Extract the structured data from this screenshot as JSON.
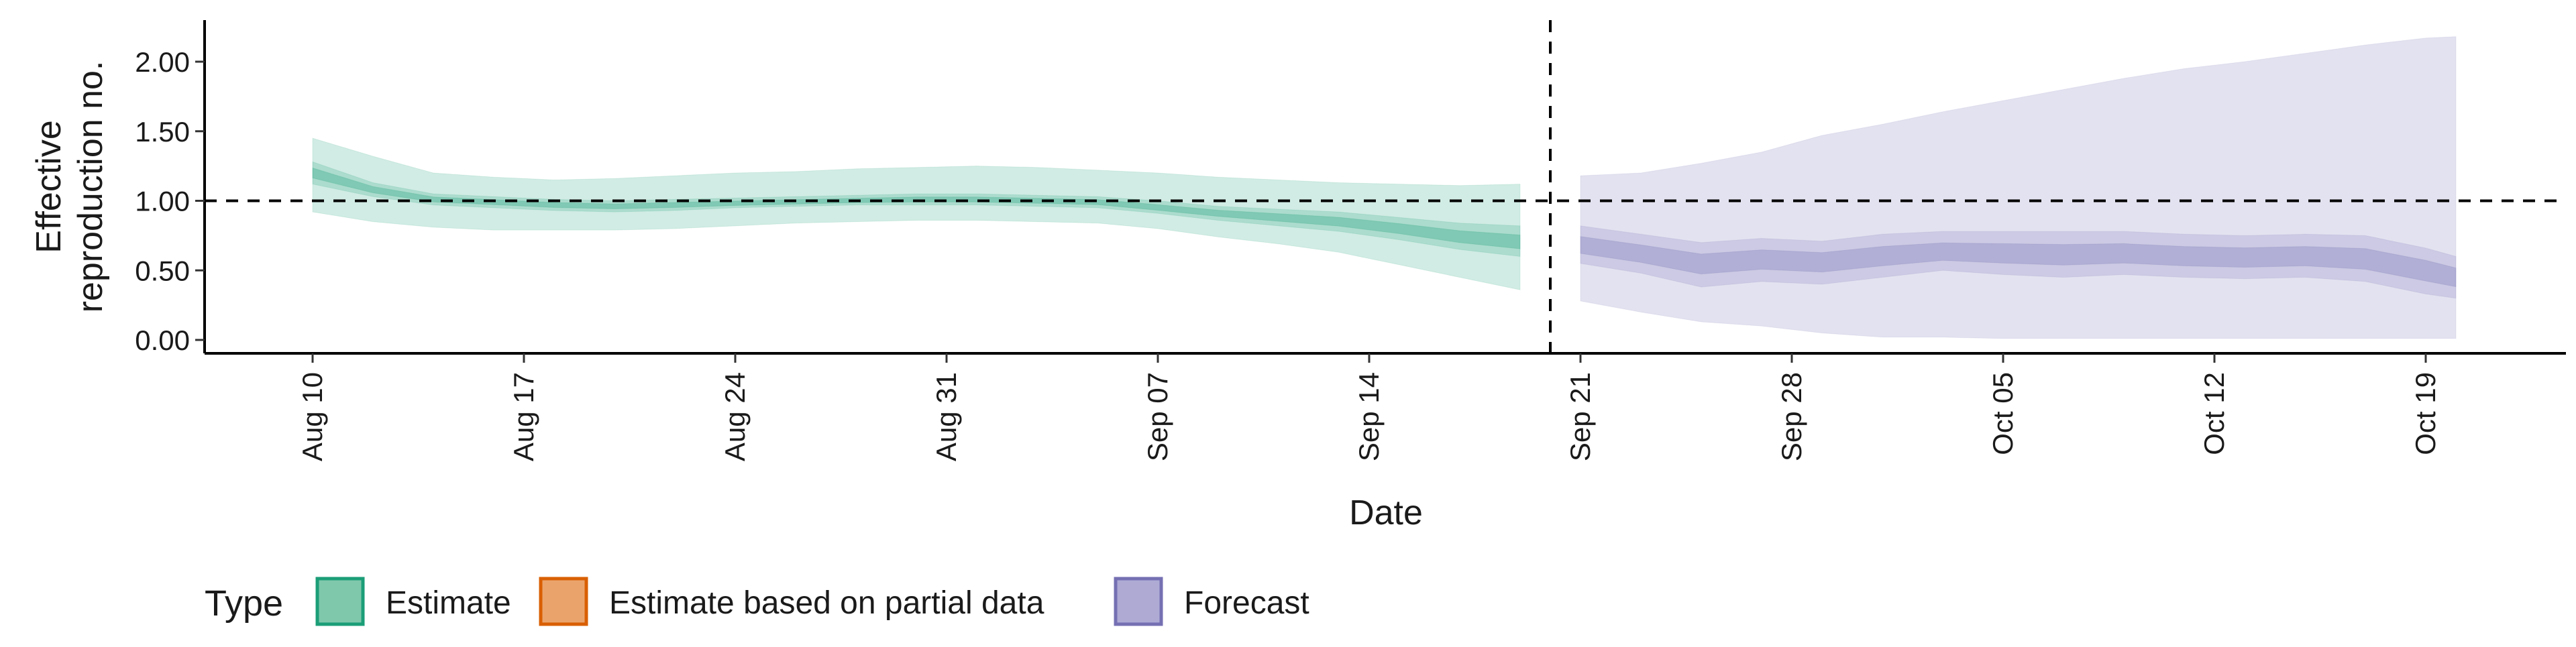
{
  "chart_data": {
    "type": "area",
    "xlabel": "Date",
    "ylabel": "Effective reproduction no.",
    "ylim": [
      0,
      2.3
    ],
    "y_ticks": [
      "0.00",
      "0.50",
      "1.00",
      "1.50",
      "2.00"
    ],
    "x_ticks": [
      "2020-08-10",
      "2020-08-17",
      "2020-08-24",
      "2020-08-31",
      "2020-09-07",
      "2020-09-14",
      "2020-09-21",
      "2020-09-28",
      "2020-10-05",
      "2020-10-12",
      "2020-10-19"
    ],
    "x_tick_labels": [
      "Aug 10",
      "Aug 17",
      "Aug 24",
      "Aug 31",
      "Sep 07",
      "Sep 14",
      "Sep 21",
      "Sep 28",
      "Oct 05",
      "Oct 12",
      "Oct 19"
    ],
    "reference_lines": {
      "horizontal_y": 1.0,
      "vertical_date": "2020-09-20"
    },
    "grid": false,
    "legend": {
      "title": "Type",
      "position": "bottom-left",
      "entries": [
        {
          "label": "Estimate",
          "fill": "#7fc8ac",
          "stroke": "#1b9e77"
        },
        {
          "label": "Estimate based on partial data",
          "fill": "#eba36c",
          "stroke": "#d95f02"
        },
        {
          "label": "Forecast",
          "fill": "#aeaad4",
          "stroke": "#7570b3"
        }
      ]
    },
    "series": [
      {
        "name": "Estimate",
        "color": "#1b9e77",
        "x": [
          "2020-08-10",
          "2020-08-12",
          "2020-08-14",
          "2020-08-16",
          "2020-08-18",
          "2020-08-20",
          "2020-08-22",
          "2020-08-24",
          "2020-08-26",
          "2020-08-28",
          "2020-08-30",
          "2020-09-01",
          "2020-09-03",
          "2020-09-05",
          "2020-09-07",
          "2020-09-09",
          "2020-09-11",
          "2020-09-13",
          "2020-09-15",
          "2020-09-17",
          "2020-09-19"
        ],
        "median": [
          1.2,
          1.08,
          1.01,
          0.99,
          0.97,
          0.96,
          0.97,
          0.98,
          0.99,
          1.0,
          1.01,
          1.01,
          1.0,
          0.99,
          0.95,
          0.91,
          0.88,
          0.85,
          0.8,
          0.74,
          0.7
        ],
        "lower_50": [
          1.12,
          1.03,
          0.97,
          0.95,
          0.93,
          0.92,
          0.93,
          0.95,
          0.96,
          0.97,
          0.97,
          0.97,
          0.96,
          0.95,
          0.91,
          0.86,
          0.82,
          0.78,
          0.72,
          0.65,
          0.6
        ],
        "upper_50": [
          1.28,
          1.13,
          1.05,
          1.03,
          1.01,
          1.0,
          1.01,
          1.02,
          1.03,
          1.04,
          1.05,
          1.05,
          1.04,
          1.03,
          1.0,
          0.96,
          0.94,
          0.92,
          0.88,
          0.84,
          0.82
        ],
        "lower_90": [
          0.92,
          0.85,
          0.81,
          0.79,
          0.79,
          0.79,
          0.8,
          0.82,
          0.84,
          0.85,
          0.86,
          0.86,
          0.85,
          0.84,
          0.8,
          0.74,
          0.69,
          0.63,
          0.54,
          0.45,
          0.36
        ],
        "upper_90": [
          1.45,
          1.32,
          1.2,
          1.17,
          1.15,
          1.16,
          1.18,
          1.2,
          1.21,
          1.23,
          1.24,
          1.25,
          1.24,
          1.22,
          1.2,
          1.17,
          1.15,
          1.13,
          1.12,
          1.11,
          1.12
        ]
      },
      {
        "name": "Forecast",
        "color": "#7570b3",
        "x": [
          "2020-09-21",
          "2020-09-23",
          "2020-09-25",
          "2020-09-27",
          "2020-09-29",
          "2020-10-01",
          "2020-10-03",
          "2020-10-05",
          "2020-10-07",
          "2020-10-09",
          "2020-10-11",
          "2020-10-13",
          "2020-10-15",
          "2020-10-17",
          "2020-10-19",
          "2020-10-20"
        ],
        "median": [
          0.68,
          0.62,
          0.55,
          0.58,
          0.56,
          0.6,
          0.63,
          0.62,
          0.61,
          0.62,
          0.6,
          0.59,
          0.6,
          0.58,
          0.5,
          0.45
        ],
        "lower_50": [
          0.55,
          0.48,
          0.38,
          0.42,
          0.4,
          0.45,
          0.5,
          0.47,
          0.45,
          0.47,
          0.45,
          0.44,
          0.45,
          0.42,
          0.33,
          0.3
        ],
        "upper_50": [
          0.82,
          0.76,
          0.7,
          0.73,
          0.71,
          0.76,
          0.78,
          0.78,
          0.78,
          0.78,
          0.76,
          0.75,
          0.76,
          0.75,
          0.66,
          0.6
        ],
        "lower_90": [
          0.28,
          0.2,
          0.13,
          0.1,
          0.05,
          0.02,
          0.02,
          0.01,
          0.01,
          0.01,
          0.01,
          0.01,
          0.01,
          0.01,
          0.01,
          0.01
        ],
        "upper_90": [
          1.18,
          1.2,
          1.27,
          1.35,
          1.47,
          1.55,
          1.64,
          1.72,
          1.8,
          1.88,
          1.95,
          2.0,
          2.06,
          2.12,
          2.17,
          2.18
        ]
      }
    ]
  }
}
